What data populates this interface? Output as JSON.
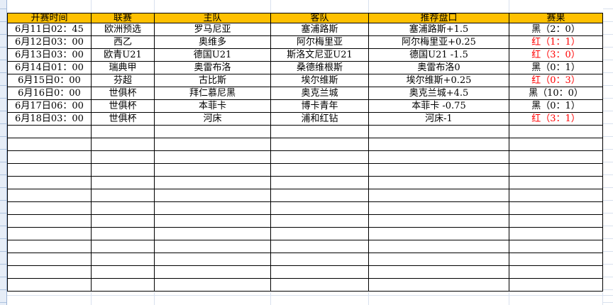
{
  "sheet": {
    "columns": [
      {
        "label": "开赛时间"
      },
      {
        "label": "联赛"
      },
      {
        "label": "主队"
      },
      {
        "label": "客队"
      },
      {
        "label": "推荐盘口"
      },
      {
        "label": "赛果"
      }
    ],
    "rows": [
      {
        "time": "6月11日02：45",
        "league": "欧洲预选",
        "home": "罗马尼亚",
        "away": "塞浦路斯",
        "handicap": "塞浦路斯+1.5",
        "result": "黑（2：0）",
        "result_color": "#000000"
      },
      {
        "time": "6月12日03：00",
        "league": "西乙",
        "home": "奥维多",
        "away": "阿尔梅里亚",
        "handicap": "阿尔梅里亚+0.25",
        "result": "红（1：1）",
        "result_color": "#FF0000"
      },
      {
        "time": "6月13日03：00",
        "league": "欧青U21",
        "home": "德国U21",
        "away": "斯洛文尼亚U21",
        "handicap": "德国U21 -1.5",
        "result": "红（3：0）",
        "result_color": "#FF0000"
      },
      {
        "time": "6月14日01：00",
        "league": "瑞典甲",
        "home": "奥雷布洛",
        "away": "桑德维根斯",
        "handicap": "奥雷布洛0",
        "result": "黑（0：1）",
        "result_color": "#000000"
      },
      {
        "time": "6月15日0：00",
        "league": "芬超",
        "home": "古比斯",
        "away": "埃尔维斯",
        "handicap": "埃尔维斯+0.25",
        "result": "红（0：3）",
        "result_color": "#FF0000"
      },
      {
        "time": "6月16日0：00",
        "league": "世俱杯",
        "home": "拜仁慕尼黑",
        "away": "奥克兰城",
        "handicap": "奥克兰城+4.5",
        "result": "黑（10：0）",
        "result_color": "#000000"
      },
      {
        "time": "6月17日06：00",
        "league": "世俱杯",
        "home": "本菲卡",
        "away": "博卡青年",
        "handicap": "本菲卡 -0.75",
        "result": "黑（0：1）",
        "result_color": "#000000"
      },
      {
        "time": "6月18日03：00",
        "league": "世俱杯",
        "home": "河床",
        "away": "浦和红钻",
        "handicap": "河床-1",
        "result": "红（3：1）",
        "result_color": "#FF0000"
      }
    ],
    "empty_row_count": 13,
    "colors": {
      "header_bg": "#FFC000",
      "table_border": "#000000",
      "result_red": "#FF0000",
      "result_black": "#000000",
      "grid_line": "#d9e1ee",
      "row_header_strip_bg": "#e6edf7",
      "row_header_strip_line": "#aec3de"
    }
  }
}
